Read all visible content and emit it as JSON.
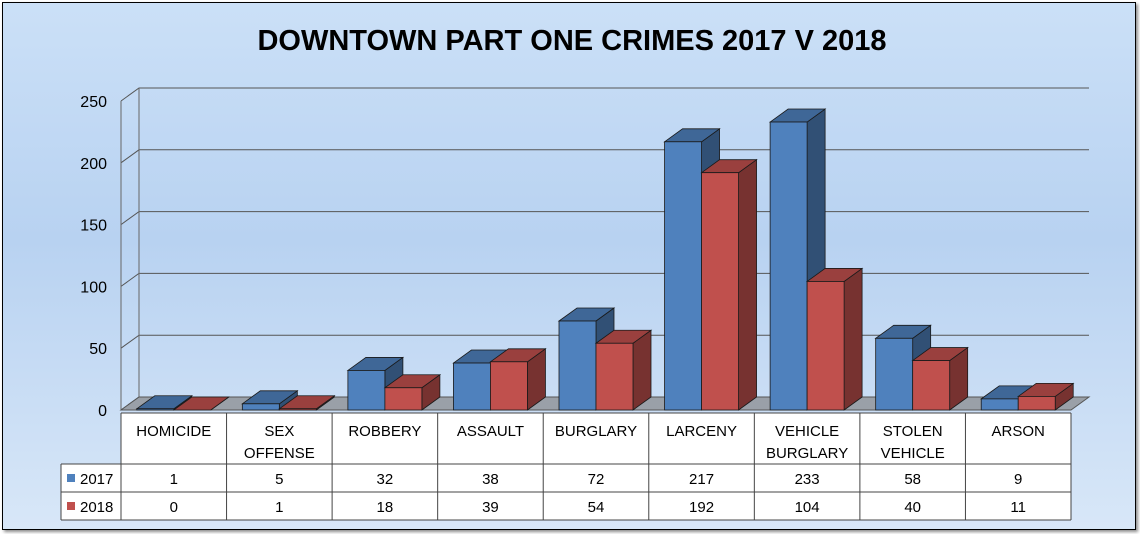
{
  "chart_data": {
    "type": "bar",
    "title": "DOWNTOWN PART ONE CRIMES 2017 V 2018",
    "categories": [
      [
        "HOMICIDE"
      ],
      [
        "SEX",
        "OFFENSE"
      ],
      [
        "ROBBERY"
      ],
      [
        "ASSAULT"
      ],
      [
        "BURGLARY"
      ],
      [
        "LARCENY"
      ],
      [
        "VEHICLE",
        "BURGLARY"
      ],
      [
        "STOLEN",
        "VEHICLE"
      ],
      [
        "ARSON"
      ]
    ],
    "series": [
      {
        "name": "2017",
        "color": "#4f81bd",
        "values": [
          1,
          5,
          32,
          38,
          72,
          217,
          233,
          58,
          9
        ]
      },
      {
        "name": "2018",
        "color": "#c0504d",
        "values": [
          0,
          1,
          18,
          39,
          54,
          192,
          104,
          40,
          11
        ]
      }
    ],
    "ylim": [
      0,
      250
    ],
    "yticks": [
      0,
      50,
      100,
      150,
      200,
      250
    ],
    "grid": true,
    "legend": "data-table",
    "style": "3d-column"
  }
}
